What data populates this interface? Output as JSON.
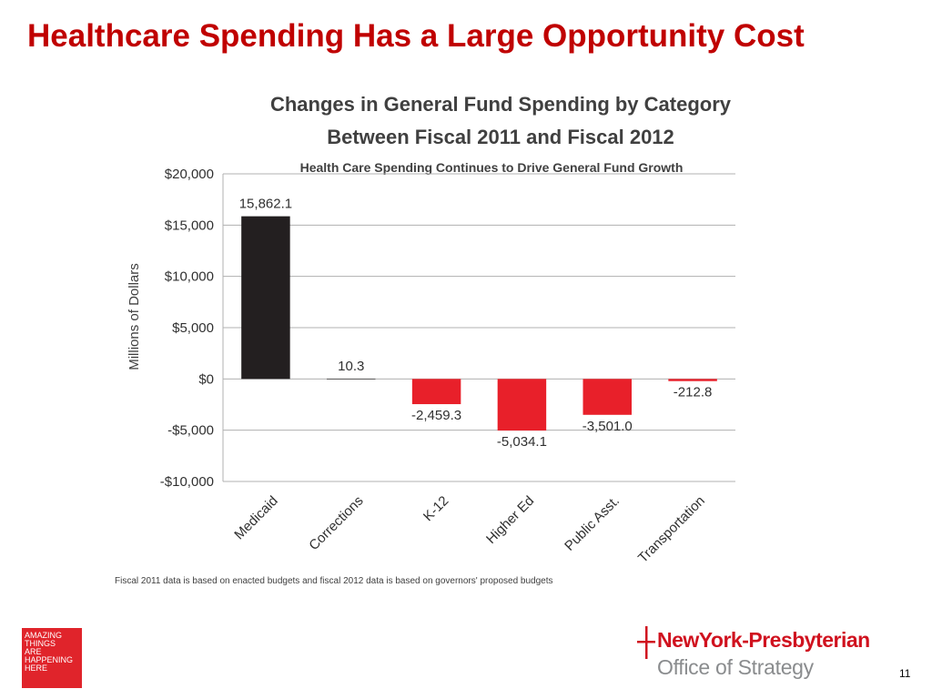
{
  "slide": {
    "title": "Healthcare Spending Has a Large Opportunity Cost",
    "page_number": "11"
  },
  "branding": {
    "badge_lines": [
      "AMAZING",
      "THINGS",
      "ARE",
      "HAPPENING",
      "HERE"
    ],
    "logo_name": "NewYork-Presbyterian",
    "logo_subtitle": "Office of Strategy",
    "brand_red": "#d0121f"
  },
  "chart_data": {
    "type": "bar",
    "title": "Changes in General Fund Spending by Category Between Fiscal 2011 and Fiscal 2012",
    "title_lines": [
      "Changes in General Fund Spending by Category",
      "Between Fiscal 2011 and Fiscal 2012"
    ],
    "subtitle": "Health Care Spending Continues to Drive General Fund Growth",
    "ylabel": "Millions of Dollars",
    "xlabel": "",
    "ylim": [
      -10000,
      20000
    ],
    "yticks": [
      20000,
      15000,
      10000,
      5000,
      0,
      -5000,
      -10000
    ],
    "ytick_labels": [
      "$20,000",
      "$15,000",
      "$10,000",
      "$5,000",
      "$0",
      "-$5,000",
      "-$10,000"
    ],
    "grid": true,
    "categories": [
      "Medicaid",
      "Corrections",
      "K-12",
      "Higher Ed",
      "Public Asst.",
      "Transportation"
    ],
    "values": [
      15862.1,
      10.3,
      -2459.3,
      -5034.1,
      -3501.0,
      -212.8
    ],
    "data_labels": [
      "15,862.1",
      "10.3",
      "-2,459.3",
      "-5,034.1",
      "-3,501.0",
      "-212.8"
    ],
    "colors": [
      "#231f20",
      "#231f20",
      "#e8202a",
      "#e8202a",
      "#e8202a",
      "#e8202a"
    ],
    "footnote": "Fiscal 2011 data is based on enacted budgets and fiscal 2012 data is based on governors' proposed budgets"
  }
}
